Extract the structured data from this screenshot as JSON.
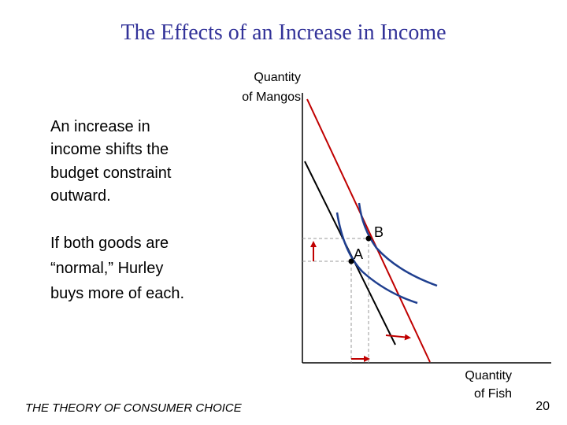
{
  "header": {
    "title": "The Effects of an Increase in Income"
  },
  "axes": {
    "y_label": [
      "Quantity",
      "of Mangos"
    ],
    "x_label": [
      "Quantity",
      "of Fish"
    ]
  },
  "body": {
    "paragraph_1": [
      "An increase in",
      "income shifts the",
      "budget constraint",
      "outward."
    ],
    "paragraph_2": [
      "If both goods are",
      "“normal,” Hurley",
      "buys more of each."
    ]
  },
  "points": {
    "a": "A",
    "b": "B"
  },
  "footer": {
    "text": "THE THEORY OF CONSUMER CHOICE",
    "page": "20"
  }
}
